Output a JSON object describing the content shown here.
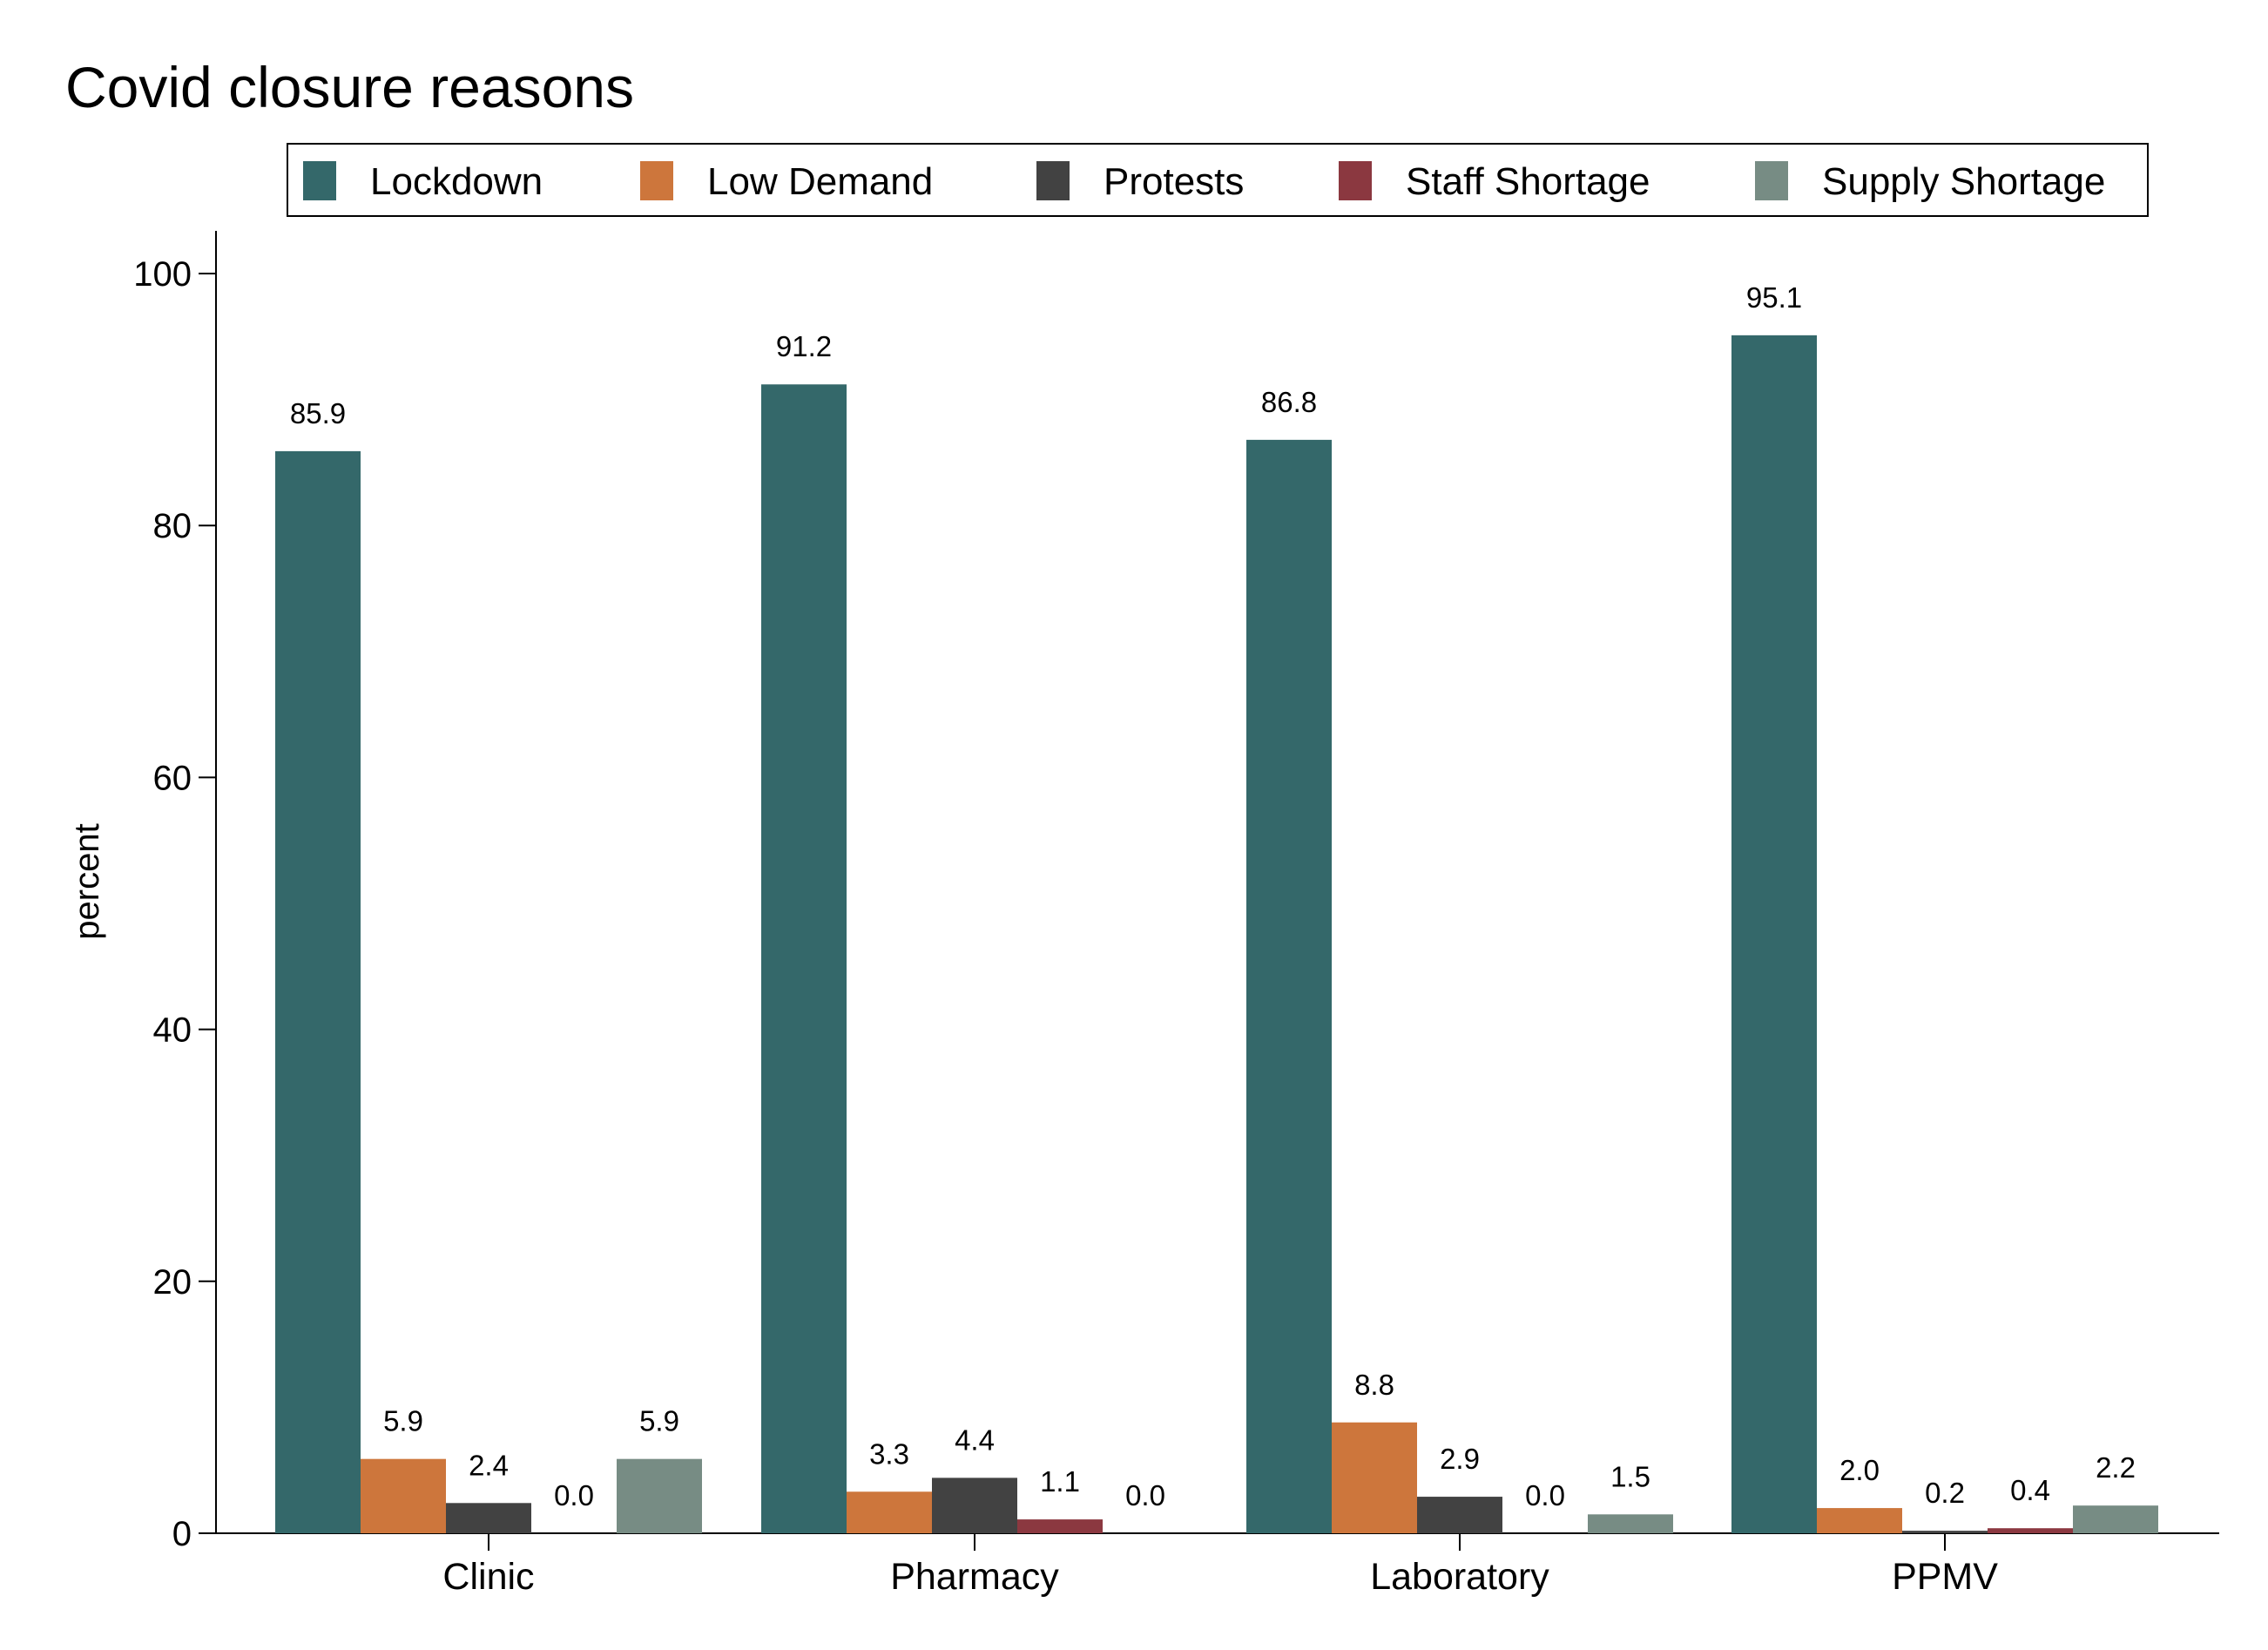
{
  "chart_data": {
    "type": "bar",
    "title": "Covid closure reasons",
    "xlabel": "",
    "ylabel": "percent",
    "ylim": [
      0,
      100
    ],
    "yticks": [
      0,
      20,
      40,
      60,
      80,
      100
    ],
    "categories": [
      "Clinic",
      "Pharmacy",
      "Laboratory",
      "PPMV"
    ],
    "series": [
      {
        "name": "Lockdown",
        "color": "#34686a",
        "values": [
          85.9,
          91.2,
          86.8,
          95.1
        ],
        "labels": [
          "85.9",
          "91.2",
          "86.8",
          "95.1"
        ]
      },
      {
        "name": "Low Demand",
        "color": "#cd763c",
        "values": [
          5.9,
          3.3,
          8.8,
          2.0
        ],
        "labels": [
          "5.9",
          "3.3",
          "8.8",
          "2.0"
        ]
      },
      {
        "name": "Protests",
        "color": "#424242",
        "values": [
          2.4,
          4.4,
          2.9,
          0.2
        ],
        "labels": [
          "2.4",
          "4.4",
          "2.9",
          "0.2"
        ]
      },
      {
        "name": "Staff Shortage",
        "color": "#8b3840",
        "values": [
          0.0,
          1.1,
          0.0,
          0.4
        ],
        "labels": [
          "0.0",
          "1.1",
          "0.0",
          "0.4"
        ]
      },
      {
        "name": "Supply Shortage",
        "color": "#778c84",
        "values": [
          5.9,
          0.0,
          1.5,
          2.2
        ],
        "labels": [
          "5.9",
          "0.0",
          "1.5",
          "2.2"
        ]
      }
    ],
    "legend_position": "top",
    "grid": false
  }
}
